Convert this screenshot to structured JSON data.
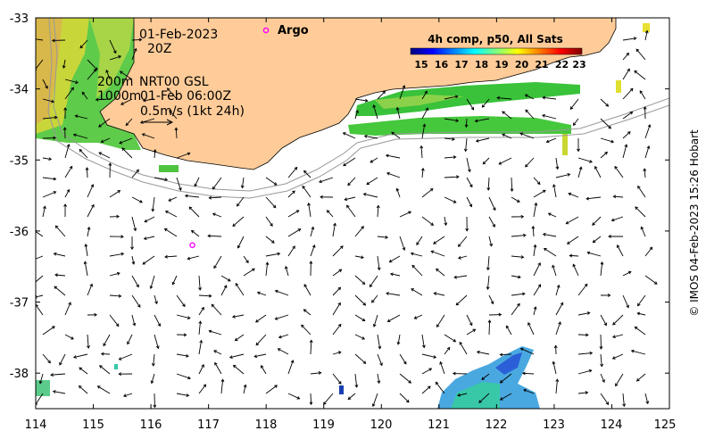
{
  "map": {
    "lon_range": [
      114,
      125
    ],
    "lat_range": [
      -38.5,
      -33
    ],
    "x_ticks": [
      114,
      115,
      116,
      117,
      118,
      119,
      120,
      121,
      122,
      123,
      124,
      125
    ],
    "y_ticks": [
      -33,
      -34,
      -35,
      -36,
      -37,
      -38
    ],
    "x_tick_labels": [
      "114",
      "115",
      "116",
      "117",
      "118",
      "119",
      "120",
      "121",
      "122",
      "123",
      "124",
      "125"
    ],
    "y_tick_labels": [
      "-33",
      "-34",
      "-35",
      "-36",
      "-37",
      "-38"
    ],
    "land_color": "#ffcc99",
    "frame_color": "#000000"
  },
  "annotations": {
    "date": "01-Feb-2023",
    "hour": "20Z",
    "depth_200": "200m",
    "depth_1000": "1000m",
    "source": "NRT00 GSL",
    "run_time": "01-Feb 06:00Z",
    "scale": "0.5m/s (1kt 24h)"
  },
  "legend": {
    "argo_label": "Argo",
    "argo_color": "#ff00ff"
  },
  "colorbar": {
    "title": "4h comp, p50, All Sats",
    "ticks": [
      "15",
      "16",
      "17",
      "18",
      "19",
      "20",
      "21",
      "22",
      "23"
    ],
    "colors": [
      "#00007f",
      "#0000ff",
      "#007fff",
      "#00ffff",
      "#7fff7f",
      "#ffff00",
      "#ff7f00",
      "#ff0000",
      "#7f0000"
    ]
  },
  "credit": "© IMOS 04-Feb-2023 15:26 Hobart",
  "argo_floats": [
    {
      "lon": 118.0,
      "lat": -33.17
    },
    {
      "lon": 116.72,
      "lat": -36.2
    }
  ]
}
